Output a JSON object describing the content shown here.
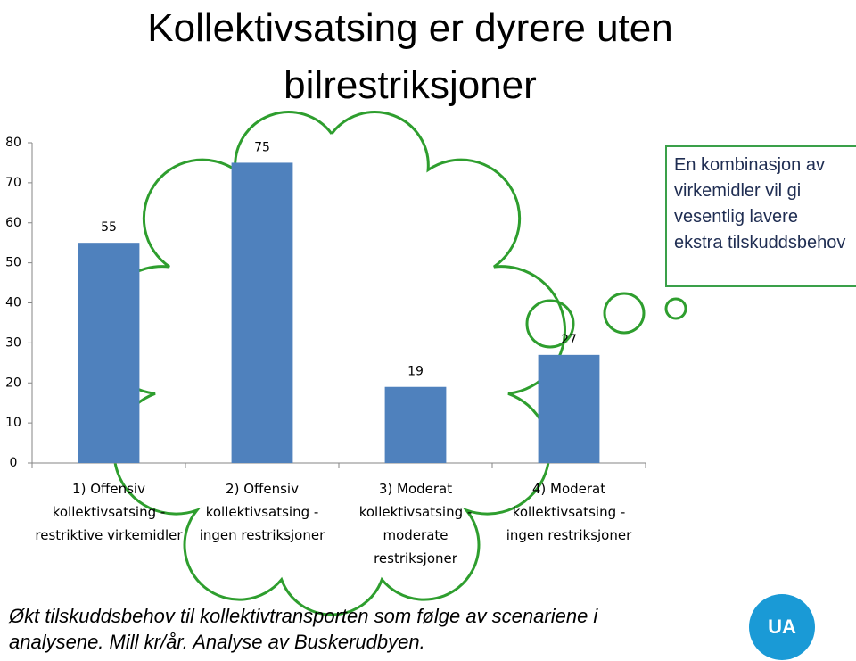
{
  "chart_data": {
    "type": "bar",
    "title": "Kollektivsatsing er dyrere uten bilrestriksjoner",
    "categories": [
      "1) Offensiv kollektivsatsing - restriktive virkemidler",
      "2) Offensiv kollektivsatsing - ingen restriksjoner",
      "3) Moderat kollektivsatsing - moderate restriksjoner",
      "4) Moderat kollektivsatsing - ingen restriksjoner"
    ],
    "values": [
      55,
      75,
      19,
      27
    ],
    "color": "#4f81bd",
    "ylim": [
      0,
      80
    ],
    "yticks": [
      0,
      10,
      20,
      30,
      40,
      50,
      60,
      70,
      80
    ],
    "grid": false,
    "annotation": "En kombinasjon av virkemidler vil gi vesentlig lavere ekstra tilskuddsbehov"
  },
  "caption": "Økt tilskuddsbehov til kollektivtransporten som følge av scenariene i analysene. Mill kr/år. Analyse av Buskerudbyen.",
  "logo": "UA"
}
